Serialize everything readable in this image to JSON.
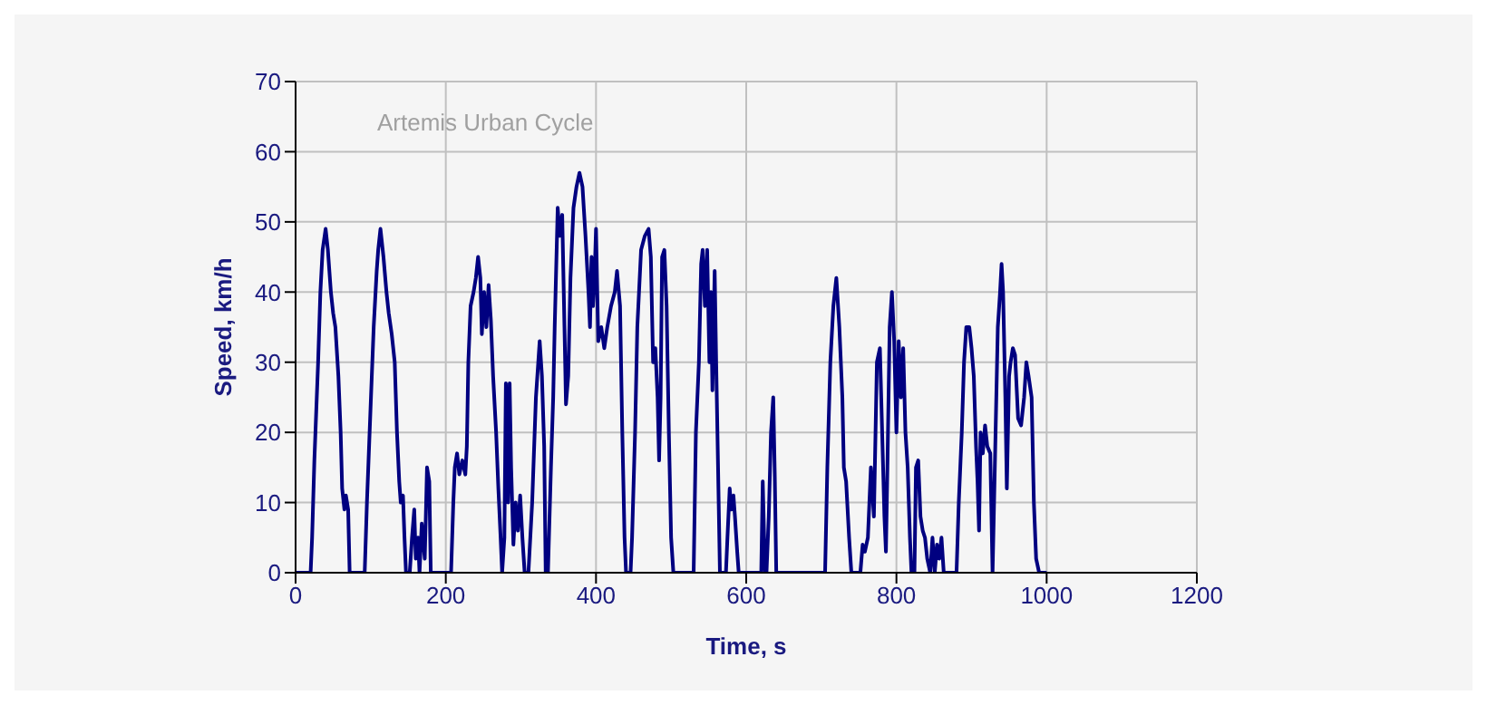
{
  "chart_data": {
    "type": "line",
    "xlabel": "Time, s",
    "ylabel": "Speed, km/h",
    "annotations": [
      "Artemis Urban Cycle"
    ],
    "xlim": [
      0,
      1200
    ],
    "xticks": [
      0,
      200,
      400,
      600,
      800,
      1000,
      1200
    ],
    "ylim": [
      0,
      70
    ],
    "yticks": [
      0,
      10,
      20,
      30,
      40,
      50,
      60,
      70
    ],
    "grid": true,
    "legend": false,
    "marker": "none",
    "line_style": "solid",
    "series": [
      {
        "color": "#000080",
        "x": [
          0,
          20,
          22,
          25,
          30,
          33,
          36,
          40,
          43,
          47,
          50,
          53,
          57,
          60,
          62,
          65,
          67,
          70,
          72,
          92,
          95,
          100,
          104,
          108,
          110,
          113,
          117,
          121,
          124,
          128,
          132,
          135,
          138,
          140,
          143,
          145,
          147,
          152,
          155,
          158,
          160,
          163,
          165,
          168,
          172,
          175,
          178,
          180,
          207,
          210,
          212,
          215,
          218,
          222,
          226,
          228,
          230,
          233,
          237,
          240,
          243,
          246,
          248,
          251,
          254,
          257,
          260,
          263,
          267,
          270,
          273,
          275,
          278,
          280,
          283,
          285,
          287,
          290,
          293,
          296,
          299,
          302,
          305,
          310,
          315,
          320,
          325,
          328,
          331,
          333,
          336,
          340,
          343,
          345,
          349,
          352,
          355,
          358,
          360,
          363,
          366,
          370,
          374,
          378,
          382,
          386,
          390,
          392,
          394,
          396,
          398,
          400,
          403,
          407,
          411,
          415,
          420,
          425,
          428,
          432,
          435,
          438,
          440,
          446,
          448,
          452,
          455,
          460,
          465,
          470,
          473,
          476,
          479,
          482,
          484,
          486,
          488,
          491,
          494,
          497,
          500,
          503,
          530,
          533,
          537,
          540,
          542,
          545,
          548,
          551,
          553,
          555,
          558,
          560,
          563,
          565,
          573,
          575,
          578,
          580,
          583,
          585,
          588,
          590,
          620,
          622,
          625,
          627,
          630,
          633,
          636,
          638,
          640,
          705,
          708,
          712,
          716,
          720,
          724,
          728,
          730,
          733,
          737,
          740,
          752,
          755,
          758,
          762,
          766,
          770,
          774,
          778,
          781,
          784,
          786,
          788,
          791,
          794,
          797,
          800,
          803,
          806,
          809,
          812,
          815,
          818,
          820,
          824,
          826,
          829,
          832,
          835,
          838,
          841,
          845,
          848,
          851,
          854,
          857,
          860,
          863,
          880,
          883,
          887,
          890,
          893,
          897,
          900,
          903,
          906,
          908,
          910,
          912,
          915,
          918,
          921,
          925,
          928,
          932,
          935,
          938,
          940,
          942,
          945,
          947,
          950,
          952,
          955,
          958,
          962,
          966,
          970,
          973,
          976,
          980,
          983,
          986,
          990,
          1000
        ],
        "values": [
          0,
          0,
          5,
          16,
          30,
          40,
          46,
          49,
          46,
          40,
          37,
          35,
          28,
          20,
          12,
          9,
          11,
          9,
          0,
          0,
          10,
          24,
          35,
          43,
          46,
          49,
          45,
          40,
          37,
          34,
          30,
          20,
          13,
          10,
          11,
          5,
          0,
          0,
          5,
          9,
          2,
          5,
          0,
          7,
          2,
          15,
          13,
          0,
          0,
          10,
          15,
          17,
          14,
          16,
          14,
          18,
          30,
          38,
          40,
          42,
          45,
          42,
          34,
          40,
          35,
          41,
          36,
          28,
          20,
          12,
          5,
          0,
          5,
          27,
          10,
          27,
          15,
          4,
          10,
          6,
          11,
          5,
          0,
          0,
          10,
          25,
          33,
          28,
          18,
          0,
          0,
          15,
          25,
          35,
          52,
          48,
          51,
          35,
          24,
          28,
          42,
          52,
          55,
          57,
          55,
          48,
          40,
          35,
          45,
          38,
          42,
          49,
          33,
          35,
          32,
          35,
          38,
          40,
          43,
          38,
          20,
          5,
          0,
          0,
          5,
          20,
          35,
          46,
          48,
          49,
          45,
          30,
          32,
          25,
          16,
          25,
          45,
          46,
          38,
          20,
          5,
          0,
          0,
          20,
          30,
          44,
          46,
          38,
          46,
          30,
          40,
          26,
          43,
          30,
          12,
          0,
          0,
          5,
          12,
          9,
          11,
          8,
          3,
          0,
          0,
          13,
          0,
          0,
          8,
          20,
          25,
          14,
          0,
          0,
          15,
          30,
          38,
          42,
          35,
          25,
          15,
          13,
          5,
          0,
          0,
          4,
          3,
          5,
          15,
          8,
          30,
          32,
          20,
          8,
          3,
          15,
          35,
          40,
          33,
          20,
          33,
          25,
          32,
          20,
          15,
          5,
          0,
          0,
          15,
          16,
          8,
          6,
          5,
          2,
          0,
          5,
          0,
          4,
          2,
          5,
          0,
          0,
          10,
          20,
          30,
          35,
          35,
          32,
          28,
          18,
          13,
          6,
          20,
          17,
          21,
          18,
          17,
          0,
          20,
          35,
          40,
          44,
          40,
          25,
          12,
          28,
          30,
          32,
          31,
          22,
          21,
          25,
          30,
          28,
          25,
          10,
          2,
          0,
          0
        ]
      }
    ]
  }
}
